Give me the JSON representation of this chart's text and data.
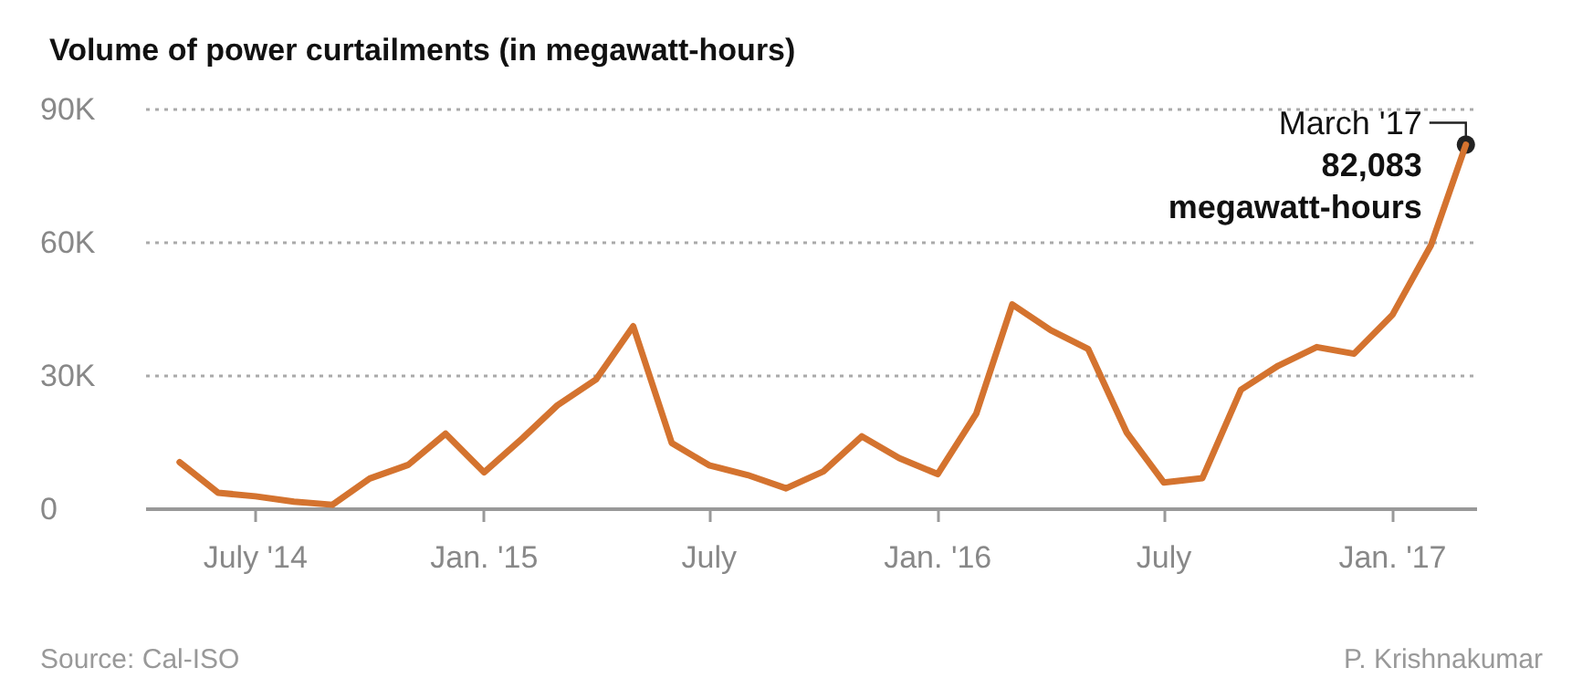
{
  "chart_data": {
    "type": "line",
    "title": "Volume of power curtailments (in megawatt-hours)",
    "x": [
      "2014-05",
      "2014-06",
      "2014-07",
      "2014-08",
      "2014-09",
      "2014-10",
      "2014-11",
      "2014-12",
      "2015-01",
      "2015-02",
      "2015-03",
      "2015-04",
      "2015-05",
      "2015-06",
      "2015-07",
      "2015-08",
      "2015-09",
      "2015-10",
      "2015-11",
      "2015-12",
      "2016-01",
      "2016-02",
      "2016-03",
      "2016-04",
      "2016-05",
      "2016-06",
      "2016-07",
      "2016-08",
      "2016-09",
      "2016-10",
      "2016-11",
      "2016-12",
      "2017-01",
      "2017-02",
      "2017-03"
    ],
    "series": [
      {
        "color": "#d4732f",
        "values": [
          10600,
          3700,
          2900,
          1700,
          1000,
          6900,
          10000,
          17000,
          8300,
          16000,
          23400,
          29200,
          41200,
          14900,
          9900,
          7700,
          4700,
          8500,
          16400,
          11500,
          7900,
          21500,
          46100,
          40300,
          36100,
          17300,
          6000,
          7000,
          26900,
          32300,
          36500,
          35000,
          43800,
          59500,
          82083
        ]
      }
    ],
    "xlim": [
      "2014-04-04",
      "2017-03-10"
    ],
    "xticks": [
      {
        "value": "2014-07",
        "label": "July '14"
      },
      {
        "value": "2015-01",
        "label": "Jan. '15"
      },
      {
        "value": "2015-07",
        "label": "July"
      },
      {
        "value": "2016-01",
        "label": "Jan. '16"
      },
      {
        "value": "2016-07",
        "label": "July"
      },
      {
        "value": "2017-01",
        "label": "Jan. '17"
      }
    ],
    "ylim": [
      0,
      90000
    ],
    "yticks": [
      {
        "value": 0,
        "label": "0"
      },
      {
        "value": 30000,
        "label": "30K"
      },
      {
        "value": 60000,
        "label": "60K"
      },
      {
        "value": 90000,
        "label": "90K"
      }
    ],
    "grid": "y",
    "marker": "none",
    "line_style": "solid",
    "annotations": [
      {
        "text": "March '17\n82,083\nmegawatt-hours",
        "x": "2017-03",
        "y": 82083
      },
      "Source: Cal-ISO",
      "P. Krishnakumar"
    ]
  }
}
